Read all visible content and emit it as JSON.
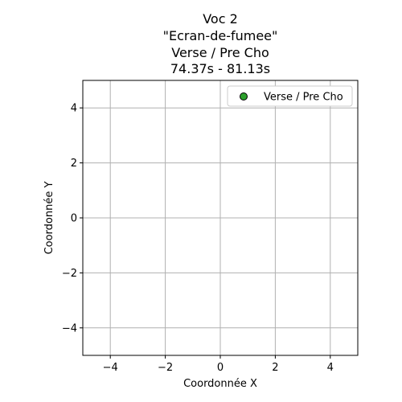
{
  "chart_data": {
    "type": "scatter",
    "title_lines": [
      "Voc 2",
      "\"Ecran-de-fumee\"",
      "Verse / Pre Cho",
      "74.37s - 81.13s"
    ],
    "xlabel": "Coordonnée X",
    "ylabel": "Coordonnée Y",
    "xlim": [
      -5,
      5
    ],
    "ylim": [
      -5,
      5
    ],
    "xticks": [
      -4,
      -2,
      0,
      2,
      4
    ],
    "yticks": [
      -4,
      -2,
      0,
      2,
      4
    ],
    "xtick_labels": [
      "−4",
      "−2",
      "0",
      "2",
      "4"
    ],
    "ytick_labels": [
      "−4",
      "−2",
      "0",
      "2",
      "4"
    ],
    "grid": true,
    "legend_position": "top-right",
    "series": [
      {
        "name": "Verse / Pre Cho",
        "color": "#2ca02c",
        "edge_color": "#000000",
        "points": []
      }
    ]
  }
}
